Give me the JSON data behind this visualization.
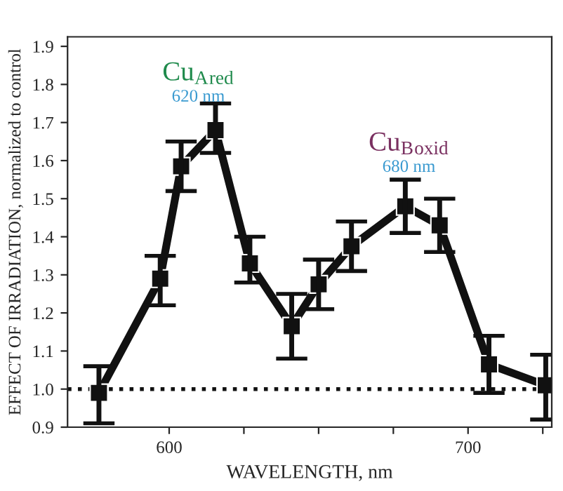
{
  "chart_data": {
    "type": "line",
    "xlabel": "WAVELENGTH, nm",
    "ylabel": "EFFECT OF IRRADIATION, normalized to control",
    "x": [
      576.5,
      597,
      604,
      615.5,
      627,
      641,
      650,
      661,
      679,
      690.5,
      707,
      726
    ],
    "series": [
      {
        "color": "#111111",
        "values": [
          0.99,
          1.29,
          1.585,
          1.68,
          1.33,
          1.165,
          1.275,
          1.375,
          1.48,
          1.43,
          1.065,
          1.01
        ],
        "errors": [
          [
            0.91,
            1.06
          ],
          [
            1.22,
            1.35
          ],
          [
            1.52,
            1.65
          ],
          [
            1.62,
            1.75
          ],
          [
            1.28,
            1.4
          ],
          [
            1.08,
            1.25
          ],
          [
            1.21,
            1.34
          ],
          [
            1.31,
            1.44
          ],
          [
            1.41,
            1.55
          ],
          [
            1.36,
            1.5
          ],
          [
            0.99,
            1.14
          ],
          [
            0.92,
            1.09
          ]
        ]
      }
    ],
    "marker": "square",
    "line_style": "solid",
    "grid": false,
    "legend": false,
    "xlim": [
      566,
      728
    ],
    "ylim": [
      0.9,
      1.925
    ],
    "xticks": [
      600,
      {
        "value": 625,
        "label": null
      },
      {
        "value": 650,
        "label": null
      },
      {
        "value": 675,
        "label": null
      },
      700,
      {
        "value": 725,
        "label": null
      }
    ],
    "yticks": [
      0.9,
      {
        "value": 1.0,
        "label": "1.0"
      },
      1.1,
      1.2,
      1.3,
      1.4,
      1.5,
      1.6,
      1.7,
      1.8,
      1.9
    ],
    "ref_lines": [
      {
        "axis": "y",
        "value": 1.0,
        "line_style": "dotted",
        "color": "#111111"
      }
    ],
    "annotations": [
      "Cu$_{A}$$_{red}$",
      "620 nm",
      "Cu$_{B}$$_{oxid}$",
      "680 nm"
    ]
  }
}
